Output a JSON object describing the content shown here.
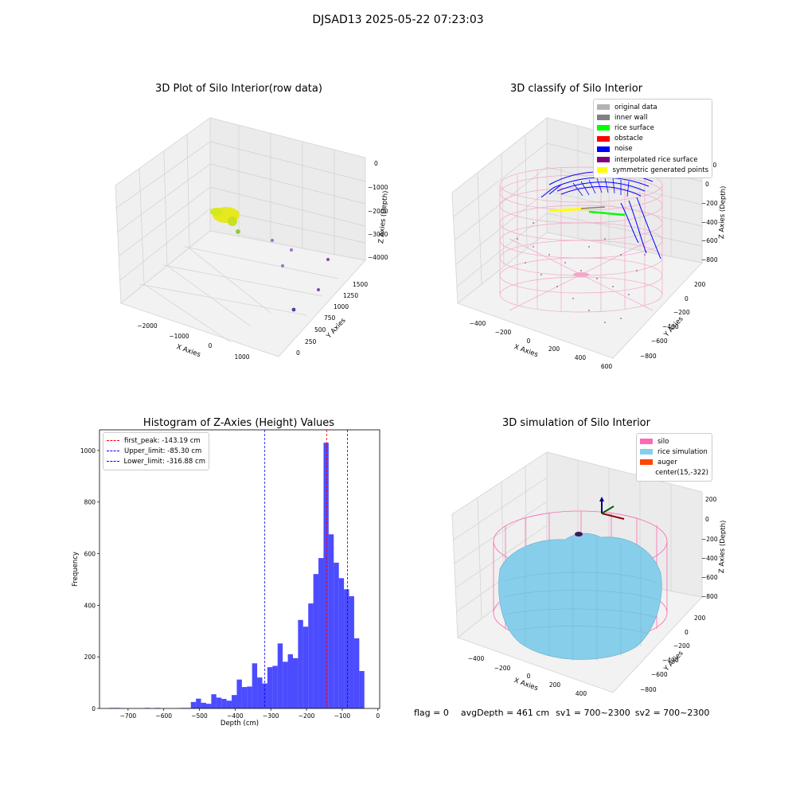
{
  "suptitle": "DJSAD13 2025-05-22 07:23:03",
  "panel_raw": {
    "title": "3D Plot of Silo Interior(row data)",
    "xlabel": "X Axies",
    "ylabel": "Y Axies",
    "zlabel": "Z Axies (Depth)",
    "x_ticks": [
      "−2000",
      "−1000",
      "0",
      "1000"
    ],
    "y_ticks": [
      "0",
      "250",
      "500",
      "750",
      "1000",
      "1250",
      "1500"
    ],
    "z_ticks": [
      "0",
      "−1000",
      "−2000",
      "−3000",
      "−4000"
    ]
  },
  "panel_classify": {
    "title": "3D classify of Silo Interior",
    "xlabel": "X Axies",
    "ylabel": "Y Axies",
    "zlabel": "Z Axies (Depth)",
    "x_ticks": [
      "−400",
      "−200",
      "0",
      "200",
      "400",
      "600"
    ],
    "y_ticks": [
      "200",
      "0",
      "−200",
      "−400",
      "−600",
      "−800"
    ],
    "z_ticks": [
      "200",
      "0",
      "−200",
      "−400",
      "−600",
      "−800"
    ],
    "legend": [
      {
        "label": "original data",
        "color": "#b3b3b3"
      },
      {
        "label": "inner wall",
        "color": "#808080"
      },
      {
        "label": "rice surface",
        "color": "#00ff00"
      },
      {
        "label": "obstacle",
        "color": "#ff0000"
      },
      {
        "label": "noise",
        "color": "#0000ff"
      },
      {
        "label": "interpolated rice surface",
        "color": "#800080"
      },
      {
        "label": "symmetric generated points",
        "color": "#ffff00"
      }
    ]
  },
  "panel_sim": {
    "title": "3D simulation of Silo Interior",
    "xlabel": "X Axies",
    "ylabel": "Y Axies",
    "zlabel": "Z Axies (Depth)",
    "x_ticks": [
      "−400",
      "−200",
      "0",
      "200",
      "400"
    ],
    "y_ticks": [
      "200",
      "0",
      "−200",
      "−400",
      "−600",
      "−800"
    ],
    "z_ticks": [
      "200",
      "0",
      "−200",
      "−400",
      "−600",
      "−800"
    ],
    "legend": [
      {
        "label": "silo",
        "color": "#ff69b4"
      },
      {
        "label": "rice simulation",
        "color": "#87ceeb"
      },
      {
        "label": "auger",
        "color": "#ff4500"
      },
      {
        "label": "center(15,-322)",
        "color": ""
      }
    ]
  },
  "chart_data": {
    "type": "bar",
    "title": "Histogram of Z-Axies (Height) Values",
    "xlabel": "Depth (cm)",
    "ylabel": "Frequency",
    "xlim": [
      -780,
      5
    ],
    "ylim": [
      0,
      1080
    ],
    "x_ticks": [
      -700,
      -600,
      -500,
      -400,
      -300,
      -200,
      -100,
      0
    ],
    "x_tick_labels": [
      "−700",
      "−600",
      "−500",
      "−400",
      "−300",
      "−200",
      "−100",
      "0"
    ],
    "y_ticks": [
      0,
      200,
      400,
      600,
      800,
      1000
    ],
    "y_tick_labels": [
      "0",
      "200",
      "400",
      "600",
      "800",
      "1000"
    ],
    "bar_color": "#0000ff",
    "bin_width": 14.3,
    "bin_starts": [
      -752.9,
      -738.6,
      -724.3,
      -710.0,
      -695.7,
      -681.4,
      -667.1,
      -652.8,
      -638.5,
      -624.2,
      -609.9,
      -595.6,
      -581.3,
      -567.0,
      -552.7,
      -538.4,
      -524.1,
      -509.8,
      -495.5,
      -481.2,
      -466.9,
      -452.6,
      -438.3,
      -424.0,
      -409.7,
      -395.4,
      -381.1,
      -366.8,
      -352.5,
      -338.2,
      -323.9,
      -309.6,
      -295.3,
      -281.0,
      -266.7,
      -252.4,
      -238.1,
      -223.8,
      -209.5,
      -195.2,
      -180.9,
      -166.6,
      -152.3,
      -138.0,
      -123.7,
      -109.4,
      -95.1,
      -80.8,
      -66.5,
      -52.2,
      -37.9
    ],
    "values": [
      2,
      2,
      1,
      0,
      0,
      0,
      0,
      2,
      0,
      2,
      0,
      0,
      0,
      1,
      2,
      2,
      25,
      38,
      22,
      18,
      55,
      42,
      37,
      30,
      52,
      112,
      83,
      85,
      175,
      120,
      97,
      160,
      165,
      252,
      181,
      210,
      195,
      343,
      317,
      407,
      521,
      583,
      1030,
      675,
      565,
      505,
      462,
      435,
      272,
      145,
      0
    ],
    "lines": [
      {
        "label": "first_peak: -143.19 cm",
        "x": -143.19,
        "color": "#ff0000"
      },
      {
        "label": "Upper_limit: -85.30 cm",
        "x": -85.3,
        "color": "#0000ff"
      },
      {
        "label": "Lower_limit: -316.88 cm",
        "x": -316.88,
        "color": "#0000ff"
      }
    ]
  },
  "status": {
    "flag": "flag = 0",
    "avg_depth": "avgDepth = 461 cm",
    "sv1": "sv1 = 700~2300",
    "sv2": "sv2 = 700~2300"
  }
}
